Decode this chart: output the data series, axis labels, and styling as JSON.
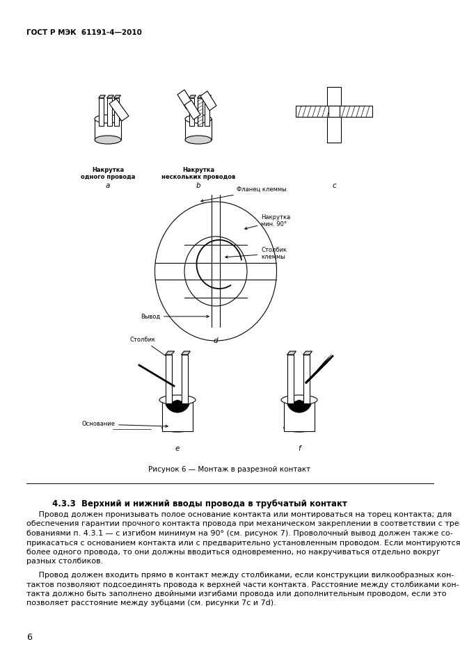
{
  "page_title": "ГОСТ Р МЭК  61191-4—2010",
  "fig_caption": "Рисунок 6 — Монтаж в разрезной контакт",
  "section_title": "4.3.3  Верхний и нижний вводы провода в трубчатый контакт",
  "para1_line1": "     Провод должен пронизывать полое основание контакта или монтироваться на торец контакта; для",
  "para1_line2": "обеспечения гарантии прочного контакта провода при механическом закреплении в соответствии с тре-",
  "para1_line3": "бованиями п. 4.3.1 — с изгибом минимум на 90° (см. рисунок 7). Проволочный вывод должен также со-",
  "para1_line4": "прикасаться с основанием контакта или с предварительно установленным проводом. Если монтируются",
  "para1_line5": "более одного провода, то они должны вводиться одновременно, но накручиваться отдельно вокруг",
  "para1_line6": "разных столбиков.",
  "para2_line1": "     Провод должен входить прямо в контакт между столбиками, если конструкции вилкообразных кон-",
  "para2_line2": "тактов позволяют подсоединять провода к верхней части контакта. Расстояние между столбиками кон-",
  "para2_line3": "такта должно быть заполнено двойными изгибами провода или дополнительным проводом, если это",
  "para2_line4": "позволяет расстояние между зубцами (см. рисунки 7с и 7d).",
  "page_num": "6",
  "label_a": "Накрутка\nодного провода",
  "label_b": "Накрутка\nнескольких проводов",
  "label_letter_a": "a",
  "label_letter_b": "b",
  "label_letter_c": "c",
  "label_letter_d": "d",
  "label_letter_e": "e",
  "label_letter_f": "f",
  "label_flanec": "Фланец клеммы",
  "label_nakrutka": "Накрутка\nмин. 90°",
  "label_stolbik_klemmy": "Столбик\nклеммы",
  "label_vyvod": "Вывод",
  "label_stolbik": "Столбик",
  "label_osnovanie": "Основание",
  "background_color": "#ffffff",
  "text_color": "#000000"
}
